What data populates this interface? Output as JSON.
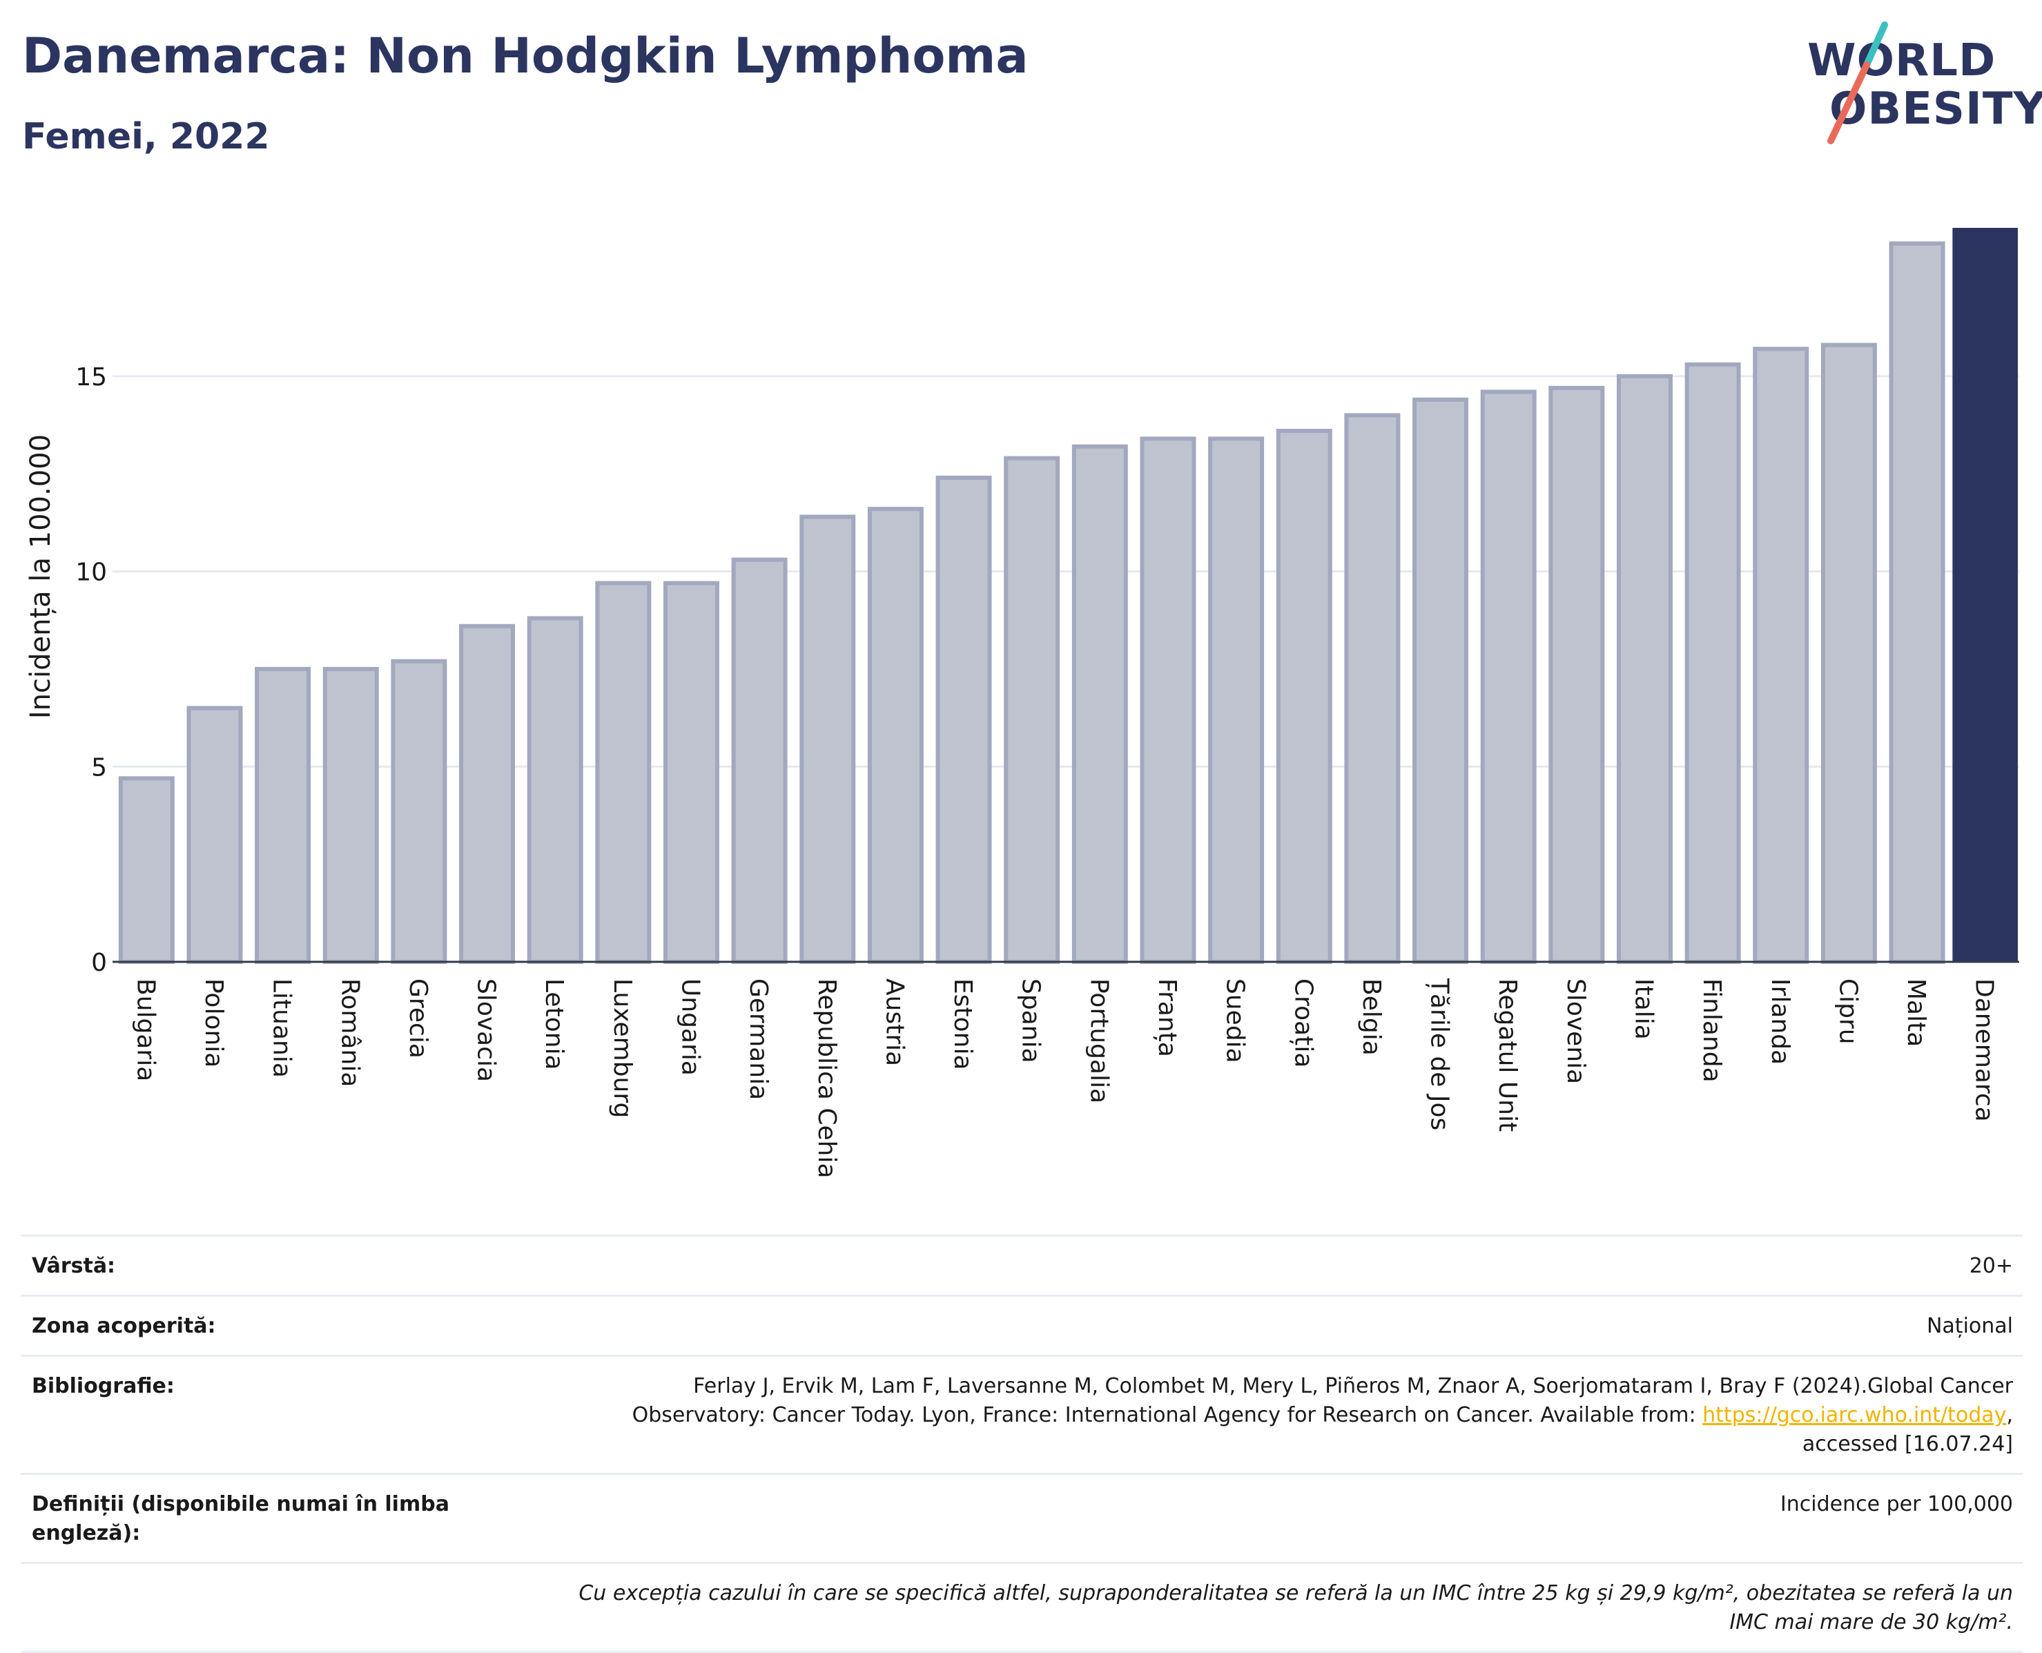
{
  "header": {
    "title": "Danemarca: Non Hodgkin Lymphoma",
    "subtitle": "Femei, 2022"
  },
  "logo": {
    "line1": "WORLD",
    "line2": "OBESITY",
    "colors": {
      "text": "#2b3560",
      "slash_top": "#3bbfbf",
      "slash_bottom": "#ea6a5a"
    }
  },
  "chart_data": {
    "type": "bar",
    "ylabel": "Incidența la 100.000",
    "xlabel": "",
    "ylim": [
      0,
      18.8
    ],
    "yticks": [
      0,
      5,
      10,
      15
    ],
    "grid": true,
    "highlight": "Danemarca",
    "colors": {
      "bar": "#bfc3d0",
      "bar_border": "#a2a8be",
      "highlight": "#2b3560"
    },
    "categories": [
      "Bulgaria",
      "Polonia",
      "Lituania",
      "România",
      "Grecia",
      "Slovacia",
      "Letonia",
      "Luxemburg",
      "Ungaria",
      "Germania",
      "Republica Cehia",
      "Austria",
      "Estonia",
      "Spania",
      "Portugalia",
      "Franța",
      "Suedia",
      "Croația",
      "Belgia",
      "Țările de Jos",
      "Regatul Unit",
      "Slovenia",
      "Italia",
      "Finlanda",
      "Irlanda",
      "Cipru",
      "Malta",
      "Danemarca"
    ],
    "values": [
      4.7,
      6.5,
      7.5,
      7.5,
      7.7,
      8.6,
      8.8,
      9.7,
      9.7,
      10.3,
      11.4,
      11.6,
      12.4,
      12.9,
      13.2,
      13.4,
      13.4,
      13.6,
      14.0,
      14.4,
      14.6,
      14.7,
      15.0,
      15.3,
      15.7,
      15.8,
      18.4,
      18.8
    ]
  },
  "info": {
    "age_label": "Vârstă:",
    "age_value": "20+",
    "area_label": "Zona acoperită:",
    "area_value": "Național",
    "bib_label": "Bibliografie:",
    "bib_text": "Ferlay J, Ervik M, Lam F, Laversanne M, Colombet M, Mery L, Piñeros M, Znaor A, Soerjomataram I, Bray F (2024).Global Cancer Observatory: Cancer Today. Lyon, France: International Agency for Research on Cancer. Available from: ",
    "bib_link": "https://gco.iarc.who.int/today",
    "bib_after": ", accessed [16.07.24]",
    "def_label": "Definiții (disponibile numai în limba engleză):",
    "def_value": "Incidence per 100,000",
    "note": "Cu excepția cazului în care se specifică altfel, supraponderalitatea se referă la un IMC între 25 kg și 29,9 kg/m², obezitatea se referă la un IMC mai mare de 30 kg/m²."
  }
}
